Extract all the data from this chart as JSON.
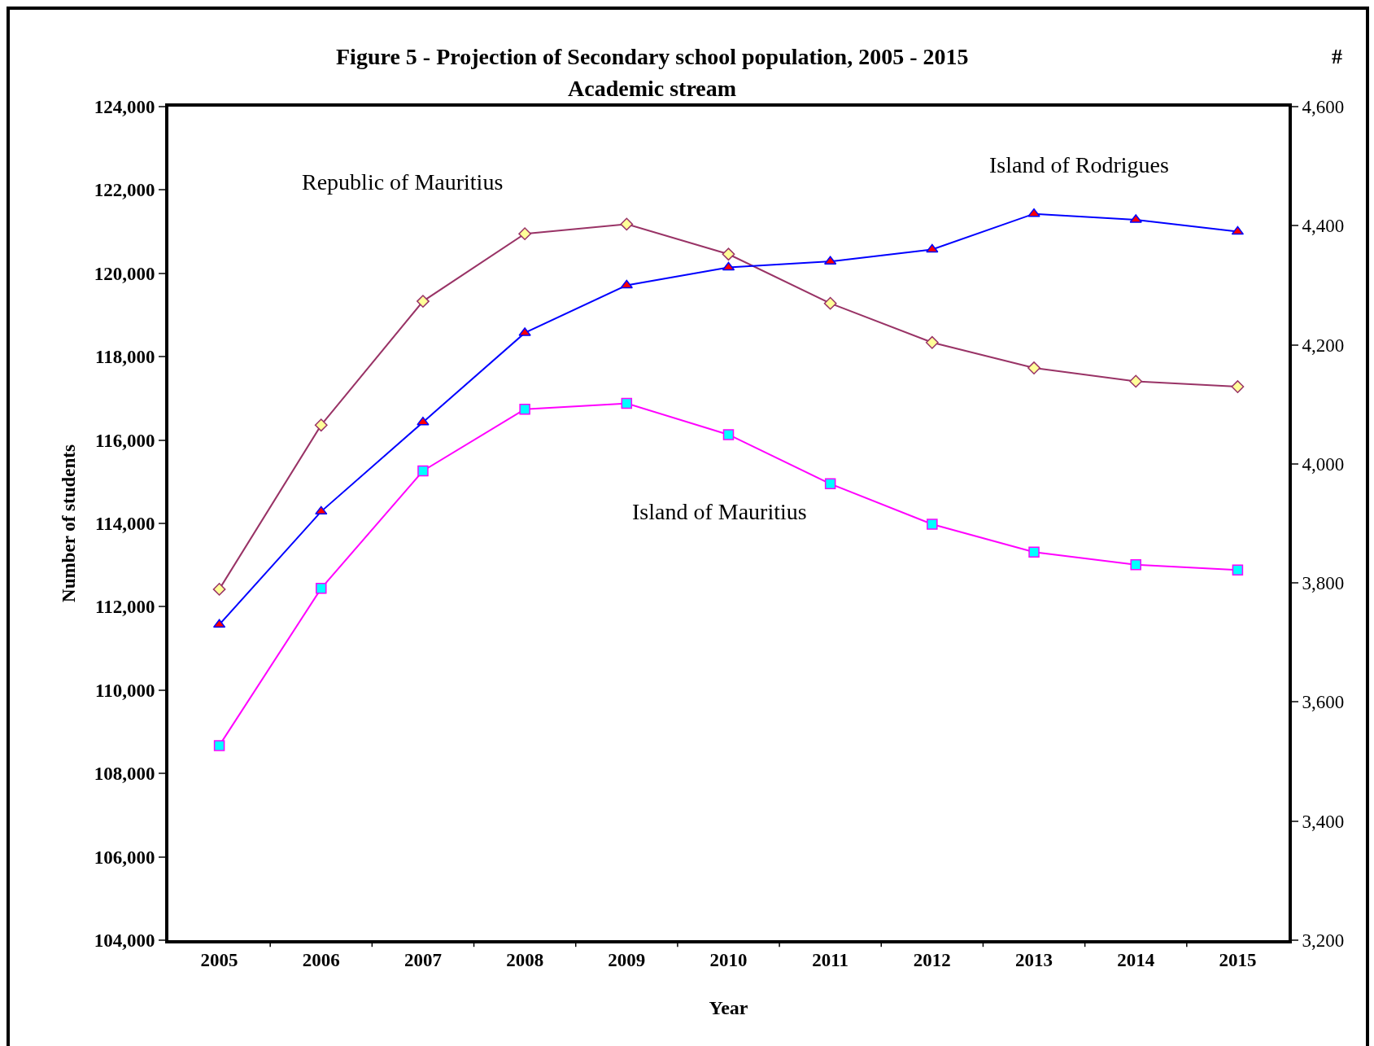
{
  "chart_data": {
    "type": "line",
    "title": "Figure 5 - Projection of Secondary school population, 2005 - 2015",
    "subtitle": "Academic stream",
    "xlabel": "Year",
    "ylabel": "Number of students",
    "annotations": [
      "#"
    ],
    "categories": [
      "2005",
      "2006",
      "2007",
      "2008",
      "2009",
      "2010",
      "2011",
      "2012",
      "2013",
      "2014",
      "2015"
    ],
    "series": [
      {
        "name": "Republic of Mauritius",
        "color": "#993366",
        "marker": "diamond",
        "values": [
          112420,
          116360,
          119330,
          120950,
          121180,
          120460,
          119280,
          118340,
          117730,
          117410,
          117280
        ]
      },
      {
        "name": "Island of Mauritius",
        "color": "#ff00ff",
        "marker": "square",
        "values": [
          108670,
          112440,
          115260,
          116740,
          116880,
          116130,
          114950,
          113980,
          113310,
          113010,
          112880
        ]
      },
      {
        "name": "Island of Rodrigues",
        "color": "#0000ff",
        "marker": "triangle",
        "axis": "y2",
        "values": [
          3730,
          3920,
          4070,
          4220,
          4300,
          4330,
          4340,
          4360,
          4420,
          4410,
          4390
        ]
      }
    ],
    "ylim": [
      104000,
      124000
    ],
    "yticks": [
      {
        "value": 104000,
        "label": "104,000"
      },
      {
        "value": 106000,
        "label": "106,000"
      },
      {
        "value": 108000,
        "label": "108,000"
      },
      {
        "value": 110000,
        "label": "110,000"
      },
      {
        "value": 112000,
        "label": "112,000"
      },
      {
        "value": 114000,
        "label": "114,000"
      },
      {
        "value": 116000,
        "label": "116,000"
      },
      {
        "value": 118000,
        "label": "118,000"
      },
      {
        "value": 120000,
        "label": "120,000"
      },
      {
        "value": 122000,
        "label": "122,000"
      },
      {
        "value": 124000,
        "label": "124,000"
      }
    ],
    "y2lim": [
      3200,
      4600
    ],
    "y2ticks": [
      {
        "value": 3200,
        "label": "3,200"
      },
      {
        "value": 3400,
        "label": "3,400"
      },
      {
        "value": 3600,
        "label": "3,600"
      },
      {
        "value": 3800,
        "label": "3,800"
      },
      {
        "value": 4000,
        "label": "4,000"
      },
      {
        "value": 4200,
        "label": "4,200"
      },
      {
        "value": 4400,
        "label": "4,400"
      },
      {
        "value": 4600,
        "label": "4,600"
      }
    ],
    "grid": false,
    "legend": false,
    "line_style": "solid"
  }
}
